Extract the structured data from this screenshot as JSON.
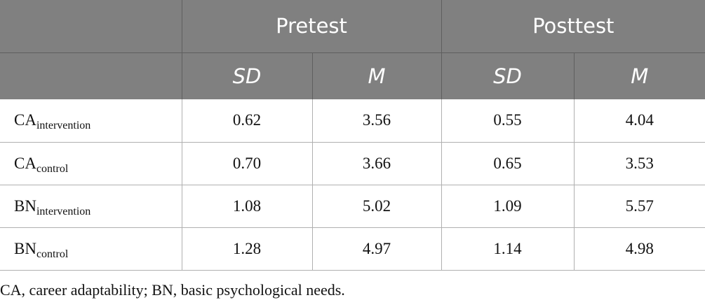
{
  "table": {
    "groups": [
      "Pretest",
      "Posttest"
    ],
    "subheaders": [
      "SD",
      "M",
      "SD",
      "M"
    ],
    "rows": [
      {
        "base": "CA",
        "sub": "intervention",
        "values": [
          "0.62",
          "3.56",
          "0.55",
          "4.04"
        ]
      },
      {
        "base": "CA",
        "sub": "control",
        "values": [
          "0.70",
          "3.66",
          "0.65",
          "3.53"
        ]
      },
      {
        "base": "BN",
        "sub": "intervention",
        "values": [
          "1.08",
          "5.02",
          "1.09",
          "5.57"
        ]
      },
      {
        "base": "BN",
        "sub": "control",
        "values": [
          "1.28",
          "4.97",
          "1.14",
          "4.98"
        ]
      }
    ]
  },
  "note": "CA, career adaptability; BN, basic psychological needs.",
  "colors": {
    "header_bg": "#808080",
    "header_text": "#ffffff",
    "row_border": "#b0b0b0"
  }
}
